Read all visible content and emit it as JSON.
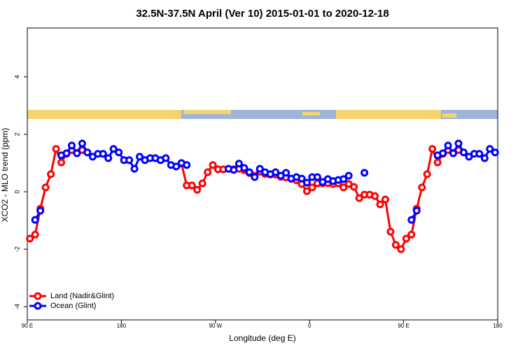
{
  "chart_data": {
    "type": "line",
    "title": "32.5N-37.5N April (Ver 10)   2015-01-01 to 2020-12-18",
    "x_label": "Longitude (deg E)",
    "y_label": "XCO2 - MLO trend (ppm)",
    "x": [
      92.5,
      97.5,
      102.5,
      107.5,
      112.5,
      117.5,
      122.5,
      127.5,
      132.5,
      137.5,
      142.5,
      147.5,
      152.5,
      157.5,
      162.5,
      167.5,
      172.5,
      177.5,
      182.5,
      187.5,
      192.5,
      197.5,
      202.5,
      207.5,
      212.5,
      217.5,
      222.5,
      227.5,
      232.5,
      237.5,
      242.5,
      247.5,
      252.5,
      257.5,
      262.5,
      267.5,
      272.5,
      277.5,
      282.5,
      287.5,
      292.5,
      297.5,
      302.5,
      307.5,
      312.5,
      317.5,
      322.5,
      327.5,
      332.5,
      337.5,
      342.5,
      347.5,
      352.5,
      357.5,
      362.5,
      367.5,
      372.5,
      377.5,
      382.5,
      387.5,
      392.5,
      397.5,
      402.5,
      407.5,
      412.5,
      417.5,
      422.5,
      427.5,
      432.5,
      437.5,
      442.5,
      447.5,
      452.5,
      457.5,
      462.5,
      467.5,
      472.5,
      477.5,
      482.5,
      487.5,
      492.5,
      497.5,
      502.5,
      507.5,
      512.5,
      517.5,
      522.5,
      527.5,
      532.5,
      537.5
    ],
    "series": [
      {
        "name": "Land (Nadir&Glint)",
        "color": "#ff0000",
        "values": [
          -1.63,
          -1.49,
          -0.59,
          0.15,
          0.61,
          1.49,
          1.02,
          1.32,
          1.45,
          1.35,
          1.45,
          null,
          null,
          null,
          null,
          null,
          null,
          null,
          null,
          null,
          null,
          null,
          null,
          null,
          null,
          null,
          null,
          null,
          null,
          0.98,
          0.22,
          0.22,
          0.07,
          0.29,
          0.68,
          0.93,
          0.78,
          0.78,
          0.8,
          0.78,
          0.8,
          0.75,
          0.65,
          0.55,
          0.7,
          0.62,
          0.6,
          0.6,
          0.52,
          0.5,
          0.45,
          0.4,
          0.27,
          0.02,
          0.15,
          0.29,
          0.29,
          0.3,
          0.27,
          0.29,
          0.15,
          0.27,
          0.17,
          -0.22,
          -0.1,
          -0.1,
          -0.15,
          -0.44,
          -0.27,
          -1.39,
          -1.85,
          -2.0,
          -1.63,
          -1.49,
          -0.59,
          0.15,
          0.61,
          1.49,
          1.02,
          1.32,
          1.45,
          1.35,
          1.45,
          null,
          null,
          null,
          null,
          null,
          null,
          null
        ]
      },
      {
        "name": "Ocean (Glint)",
        "color": "#0000ff",
        "values": [
          null,
          -0.98,
          -0.66,
          null,
          null,
          null,
          1.27,
          1.34,
          1.61,
          1.34,
          1.68,
          1.37,
          1.22,
          1.32,
          1.32,
          1.17,
          1.49,
          1.37,
          1.1,
          1.1,
          0.8,
          1.22,
          1.1,
          1.17,
          1.17,
          1.1,
          1.17,
          0.93,
          0.88,
          1.0,
          0.93,
          null,
          null,
          null,
          null,
          null,
          null,
          null,
          0.8,
          0.76,
          0.98,
          0.83,
          0.68,
          0.51,
          0.8,
          0.68,
          0.61,
          0.68,
          0.56,
          0.66,
          0.46,
          0.51,
          0.46,
          0.32,
          0.51,
          0.51,
          0.34,
          0.44,
          0.37,
          0.41,
          0.44,
          0.56,
          null,
          null,
          0.66,
          null,
          null,
          null,
          null,
          null,
          null,
          null,
          null,
          -0.98,
          -0.66,
          null,
          null,
          null,
          1.27,
          1.34,
          1.61,
          1.34,
          1.68,
          1.37,
          1.22,
          1.32,
          1.32,
          1.17,
          1.49,
          1.37
        ]
      }
    ],
    "xlim": [
      90,
      540
    ],
    "xticks": [
      {
        "value": 90,
        "label": "90 E"
      },
      180,
      {
        "value": 270,
        "label": "90 W"
      },
      {
        "value": 360,
        "label": "0"
      },
      {
        "value": 450,
        "label": "90 E"
      },
      {
        "value": 540,
        "label": "180"
      }
    ],
    "ylim": [
      -4.46,
      5.7
    ],
    "yticks": [
      -4,
      -2,
      0,
      2,
      4
    ],
    "legend": "bottom-left"
  }
}
